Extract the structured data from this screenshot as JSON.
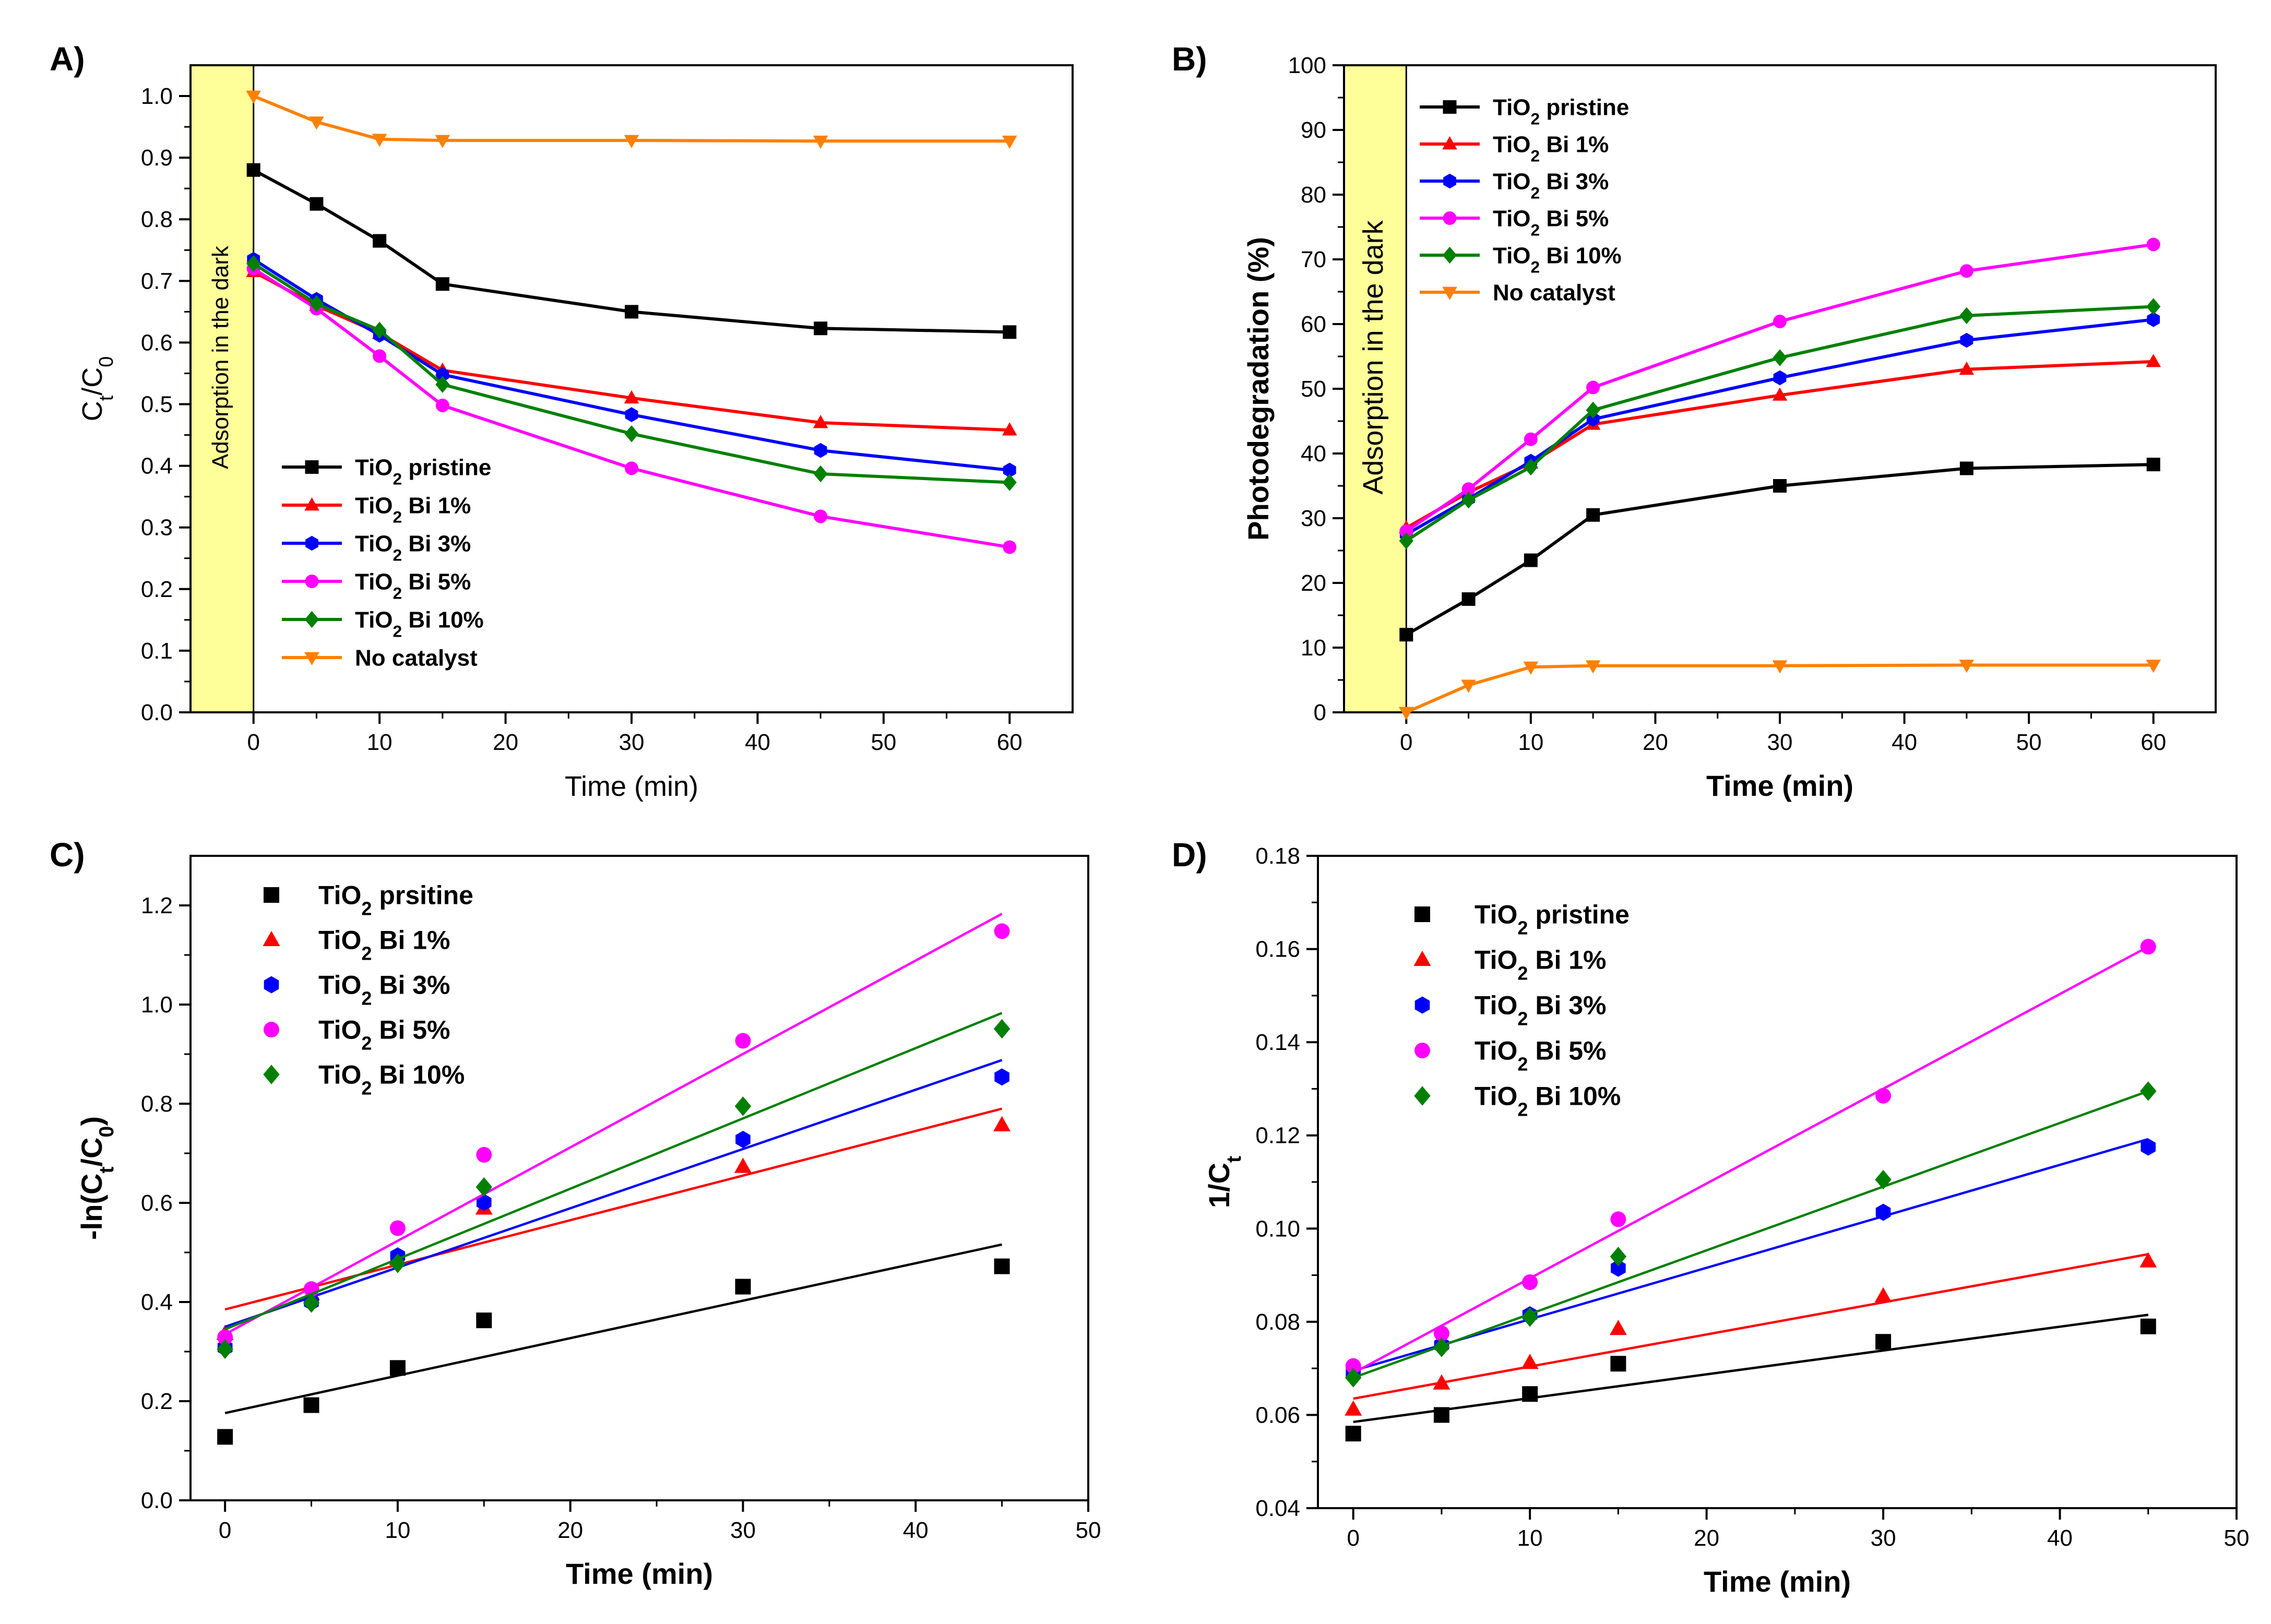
{
  "colors": {
    "TiO2 pristine": "#000000",
    "TiO2 Bi 1%": "#ff0000",
    "TiO2 Bi 3%": "#0000ff",
    "TiO2 Bi 5%": "#ff00ff",
    "TiO2 Bi 10%": "#008000",
    "No catalyst": "#ff8000",
    "dark_band": "#ffff99"
  },
  "chart_data": [
    {
      "panel": "A)",
      "type": "line",
      "xlabel": "Time (min)",
      "ylabel": "C_t/C_0",
      "xlim": [
        -5,
        65
      ],
      "ylim": [
        0.0,
        1.05
      ],
      "xticks": [
        0,
        10,
        20,
        30,
        40,
        50,
        60
      ],
      "yticks": [
        0.0,
        0.1,
        0.2,
        0.3,
        0.4,
        0.5,
        0.6,
        0.7,
        0.8,
        0.9,
        1.0
      ],
      "band_label": "Adsorption in the dark",
      "legend_position": "lower-left",
      "x": [
        0,
        5,
        10,
        15,
        30,
        45,
        60
      ],
      "series": [
        {
          "name": "TiO2 pristine",
          "values": [
            0.88,
            0.825,
            0.765,
            0.695,
            0.65,
            0.623,
            0.617
          ]
        },
        {
          "name": "TiO2 Bi 1%",
          "values": [
            0.715,
            0.66,
            0.615,
            0.555,
            0.51,
            0.47,
            0.458
          ]
        },
        {
          "name": "TiO2 Bi 3%",
          "values": [
            0.735,
            0.67,
            0.612,
            0.548,
            0.483,
            0.425,
            0.393
          ]
        },
        {
          "name": "TiO2 Bi 5%",
          "values": [
            0.72,
            0.655,
            0.578,
            0.498,
            0.396,
            0.318,
            0.268
          ]
        },
        {
          "name": "TiO2 Bi 10%",
          "values": [
            0.728,
            0.663,
            0.62,
            0.532,
            0.452,
            0.387,
            0.373
          ]
        },
        {
          "name": "No catalyst",
          "values": [
            1.0,
            0.958,
            0.93,
            0.928,
            0.928,
            0.927,
            0.927
          ]
        }
      ]
    },
    {
      "panel": "B)",
      "type": "line",
      "xlabel": "Time (min)",
      "ylabel": "Photodegradation (%)",
      "xlim": [
        -5,
        65
      ],
      "ylim": [
        0,
        100
      ],
      "xticks": [
        0,
        10,
        20,
        30,
        40,
        50,
        60
      ],
      "yticks": [
        0,
        10,
        20,
        30,
        40,
        50,
        60,
        70,
        80,
        90,
        100
      ],
      "band_label": "Adsorption in the dark",
      "legend_position": "top-left",
      "x": [
        0,
        5,
        10,
        15,
        30,
        45,
        60
      ],
      "series": [
        {
          "name": "TiO2 pristine",
          "values": [
            12,
            17.5,
            23.5,
            30.5,
            35,
            37.7,
            38.3
          ]
        },
        {
          "name": "TiO2 Bi 1%",
          "values": [
            28.5,
            34,
            38.5,
            44.5,
            49,
            53,
            54.2
          ]
        },
        {
          "name": "TiO2 Bi 3%",
          "values": [
            27.5,
            33,
            38.8,
            45.3,
            51.7,
            57.5,
            60.7
          ]
        },
        {
          "name": "TiO2 Bi 5%",
          "values": [
            28,
            34.5,
            42.2,
            50.2,
            60.4,
            68.2,
            72.3
          ]
        },
        {
          "name": "TiO2 Bi 10%",
          "values": [
            26.5,
            32.8,
            37.9,
            46.7,
            54.8,
            61.3,
            62.7
          ]
        },
        {
          "name": "No catalyst",
          "values": [
            0,
            4.2,
            7,
            7.2,
            7.2,
            7.3,
            7.3
          ]
        }
      ]
    },
    {
      "panel": "C)",
      "type": "scatter",
      "xlabel": "Time (min)",
      "ylabel": "-ln(C_t/C_0)",
      "xlim": [
        -2,
        50
      ],
      "ylim": [
        0.0,
        1.3
      ],
      "xticks": [
        0,
        10,
        20,
        30,
        40,
        50
      ],
      "yticks": [
        0.0,
        0.2,
        0.4,
        0.6,
        0.8,
        1.0,
        1.2
      ],
      "legend_position": "top-left",
      "x": [
        0,
        5,
        10,
        15,
        30,
        45
      ],
      "series": [
        {
          "name": "TiO2 prsitine",
          "values": [
            0.128,
            0.192,
            0.267,
            0.363,
            0.431,
            0.472
          ],
          "fit": [
            0.176,
            0.516
          ]
        },
        {
          "name": "TiO2 Bi 1%",
          "values": [
            0.336,
            0.416,
            0.487,
            0.589,
            0.673,
            0.757
          ],
          "fit": [
            0.385,
            0.79
          ]
        },
        {
          "name": "TiO2 Bi 3%",
          "values": [
            0.308,
            0.4,
            0.493,
            0.601,
            0.728,
            0.854
          ],
          "fit": [
            0.35,
            0.888
          ]
        },
        {
          "name": "TiO2 Bi 5%",
          "values": [
            0.329,
            0.426,
            0.549,
            0.697,
            0.927,
            1.148
          ],
          "fit": [
            0.335,
            1.183
          ]
        },
        {
          "name": "TiO2 Bi 10%",
          "values": [
            0.305,
            0.398,
            0.478,
            0.632,
            0.795,
            0.951
          ],
          "fit": [
            0.345,
            0.983
          ]
        }
      ]
    },
    {
      "panel": "D)",
      "type": "scatter",
      "xlabel": "Time (min)",
      "ylabel": "1/C_t",
      "xlim": [
        -2,
        50
      ],
      "ylim": [
        0.04,
        0.18
      ],
      "xticks": [
        0,
        10,
        20,
        30,
        40,
        50
      ],
      "yticks": [
        0.04,
        0.06,
        0.08,
        0.1,
        0.12,
        0.14,
        0.16,
        0.18
      ],
      "legend_position": "top-left",
      "x": [
        0,
        5,
        10,
        15,
        30,
        45
      ],
      "series": [
        {
          "name": "TiO2 pristine",
          "values": [
            0.056,
            0.06,
            0.0645,
            0.071,
            0.0757,
            0.079
          ],
          "fit": [
            0.0585,
            0.0815
          ]
        },
        {
          "name": "TiO2 Bi 1%",
          "values": [
            0.0612,
            0.0668,
            0.0712,
            0.0785,
            0.0855,
            0.093
          ],
          "fit": [
            0.0635,
            0.0945
          ]
        },
        {
          "name": "TiO2 Bi 3%",
          "values": [
            0.069,
            0.075,
            0.0815,
            0.0915,
            0.1035,
            0.1175
          ],
          "fit": [
            0.0695,
            0.1192
          ]
        },
        {
          "name": "TiO2 Bi 5%",
          "values": [
            0.0705,
            0.0775,
            0.0885,
            0.102,
            0.1285,
            0.1605
          ],
          "fit": [
            0.069,
            0.1605
          ]
        },
        {
          "name": "TiO2 Bi 10%",
          "values": [
            0.068,
            0.0745,
            0.081,
            0.094,
            0.1105,
            0.1295
          ],
          "fit": [
            0.068,
            0.1295
          ]
        }
      ]
    }
  ]
}
